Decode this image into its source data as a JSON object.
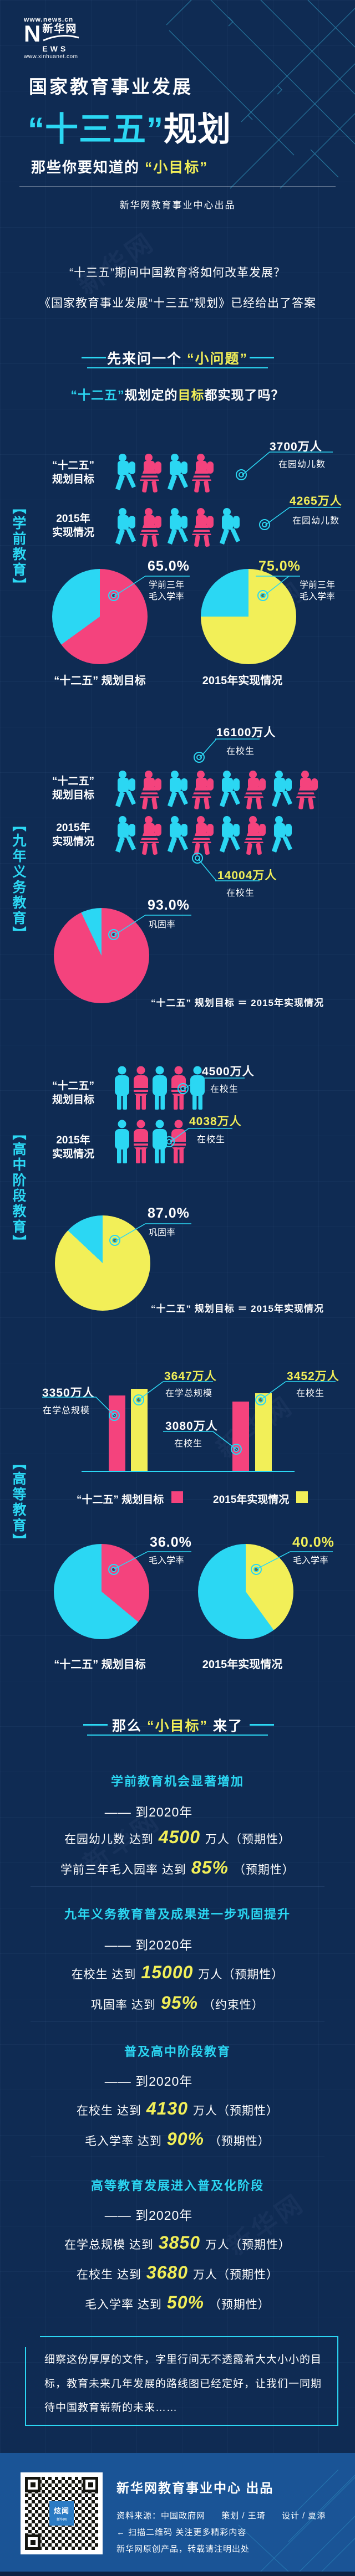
{
  "theme": {
    "bg": "#0f2b53",
    "cyan": "#2bd7f3",
    "pink": "#f4437d",
    "yellow": "#f2ef58",
    "white": "#ffffff",
    "footer_bg": "#1a5496"
  },
  "brand": {
    "url_top": "www.news.cn",
    "logo_n": "N",
    "logo_cn": "新华网",
    "logo_ews": "EWS",
    "url_bottom": "www.xinhuanet.com"
  },
  "header": {
    "title": "国家教育事业发展",
    "quoted": "“十三五”",
    "rest": "规划",
    "sub_pre": "那些你要知道的",
    "sub_quoted": "“小目标”",
    "credit": "新华网教育事业中心出品"
  },
  "intro": {
    "line1": "“十三五”期间中国教育将如何改革发展？",
    "line2": "《国家教育事业发展“十三五”规划》已经给出了答案"
  },
  "divider1": {
    "pre": "先来问一个",
    "highlight": "“小问题”"
  },
  "question": {
    "quoted": "“十二五”",
    "mid": "规划定的",
    "highlight": "目标",
    "suffix": "都实现了吗？"
  },
  "rails": [
    "【学前教育】",
    "【九年义务教育】",
    "【高中阶段教育】",
    "【高等教育】"
  ],
  "chart_data": [
    {
      "type": "pictogram",
      "section": "学前教育",
      "icon": "walker",
      "rows": [
        {
          "label_l1": "“十二五”",
          "label_l2": "规划目标",
          "value": "3700万人",
          "measure": "在园幼儿数",
          "icons": 4
        },
        {
          "label_l1": "2015年",
          "label_l2": "实现情况",
          "value": "4265万人",
          "measure": "在园幼儿数",
          "icons": 5
        }
      ]
    },
    {
      "type": "pie",
      "section": "学前教育",
      "title": "“十二五” 规划目标",
      "value": 65.0,
      "display": "65.0%",
      "label_l1": "学前三年",
      "label_l2": "毛入学率",
      "colors": [
        "#f4437d",
        "#2bd7f3"
      ]
    },
    {
      "type": "pie",
      "section": "学前教育",
      "title": "2015年实现情况",
      "value": 75.0,
      "display": "75.0%",
      "label_l1": "学前三年",
      "label_l2": "毛入学率",
      "colors": [
        "#f2ef58",
        "#2bd7f3"
      ]
    },
    {
      "type": "pictogram",
      "section": "九年义务教育",
      "icon": "walker",
      "rows": [
        {
          "label_l1": "“十二五”",
          "label_l2": "规划目标",
          "value": "16100万人",
          "measure": "在校生",
          "icons": 8
        },
        {
          "label_l1": "2015年",
          "label_l2": "实现情况",
          "value": "14004万人",
          "measure": "在校生",
          "icons": 7
        }
      ]
    },
    {
      "type": "pie",
      "section": "九年义务教育",
      "value": 93.0,
      "display": "93.0%",
      "label": "巩固率",
      "colors": [
        "#f4437d",
        "#2bd7f3"
      ],
      "note": "“十二五” 规划目标 ＝ 2015年实现情况"
    },
    {
      "type": "pictogram",
      "section": "高中阶段教育",
      "icon": "stander",
      "rows": [
        {
          "label_l1": "“十二五”",
          "label_l2": "规划目标",
          "value": "4500万人",
          "measure": "在校生",
          "icons": 5
        },
        {
          "label_l1": "2015年",
          "label_l2": "实现情况",
          "value": "4038万人",
          "measure": "在校生",
          "icons": 4
        }
      ]
    },
    {
      "type": "pie",
      "section": "高中阶段教育",
      "value": 87.0,
      "display": "87.0%",
      "label": "巩固率",
      "colors": [
        "#f2ef58",
        "#2bd7f3"
      ],
      "note": "“十二五” 规划目标 ＝ 2015年实现情况"
    },
    {
      "type": "bar",
      "section": "高等教育",
      "categories": [
        "在学总规模",
        "在校生"
      ],
      "unit": "万人",
      "ylim": [
        0,
        3700
      ],
      "series": [
        {
          "name": "“十二五” 规划目标",
          "color": "#f4437d",
          "values": [
            3350,
            3080
          ],
          "value_labels": [
            "3350万人",
            "3080万人"
          ]
        },
        {
          "name": "2015年实现情况",
          "color": "#f2ef58",
          "values": [
            3647,
            3452
          ],
          "value_labels": [
            "3647万人",
            "3452万人"
          ]
        }
      ]
    },
    {
      "type": "pie",
      "section": "高等教育",
      "title": "“十二五” 规划目标",
      "value": 36.0,
      "display": "36.0%",
      "label": "毛入学率",
      "colors": [
        "#f4437d",
        "#2bd7f3"
      ]
    },
    {
      "type": "pie",
      "section": "高等教育",
      "title": "2015年实现情况",
      "value": 40.0,
      "display": "40.0%",
      "label": "毛入学率",
      "colors": [
        "#f2ef58",
        "#2bd7f3"
      ]
    }
  ],
  "divider2": {
    "dash": "——",
    "pre": "那么",
    "highlight": "“小目标”",
    "post": "来了"
  },
  "goals": [
    {
      "heading": "学前教育机会显著增加",
      "dash": "——",
      "when": "到2020年",
      "items": [
        {
          "pre": "在园幼儿数 达到",
          "num": "4500",
          "suf": "万人（预期性）"
        },
        {
          "pre": "学前三年毛入园率 达到",
          "num": "85%",
          "suf": "（预期性）"
        }
      ]
    },
    {
      "heading": "九年义务教育普及成果进一步巩固提升",
      "dash": "——",
      "when": "到2020年",
      "items": [
        {
          "pre": "在校生 达到",
          "num": "15000",
          "suf": "万人（预期性）"
        },
        {
          "pre": "巩固率 达到",
          "num": "95%",
          "suf": "（约束性）"
        }
      ]
    },
    {
      "heading": "普及高中阶段教育",
      "dash": "——",
      "when": "到2020年",
      "items": [
        {
          "pre": "在校生 达到",
          "num": "4130",
          "suf": "万人（预期性）"
        },
        {
          "pre": "毛入学率 达到",
          "num": "90%",
          "suf": "（预期性）"
        }
      ]
    },
    {
      "heading": "高等教育发展进入普及化阶段",
      "dash": "——",
      "when": "到2020年",
      "items": [
        {
          "pre": "在学总规模 达到",
          "num": "3850",
          "suf": "万人（预期性）"
        },
        {
          "pre": "在校生 达到",
          "num": "3680",
          "suf": "万人（预期性）"
        },
        {
          "pre": "毛入学率 达到",
          "num": "50%",
          "suf": "（预期性）"
        }
      ]
    }
  ],
  "quote": "细察这份厚厚的文件，字里行间无不透露着大大小小的目标，教育未来几年发展的路线图已经定好，让我们一同期待中国教育崭新的未来……",
  "footer": {
    "title": "新华网教育事业中心 出品",
    "source": "资料来源：中国政府网",
    "plan": "策划 / 王琦",
    "design": "设计 / 夏添",
    "scan": "←  扫描二维码 关注更多精彩内容",
    "copyright": "新华网原创产品，转载请注明出处",
    "qr_label": "炫闻",
    "qr_sub": "新华网"
  }
}
